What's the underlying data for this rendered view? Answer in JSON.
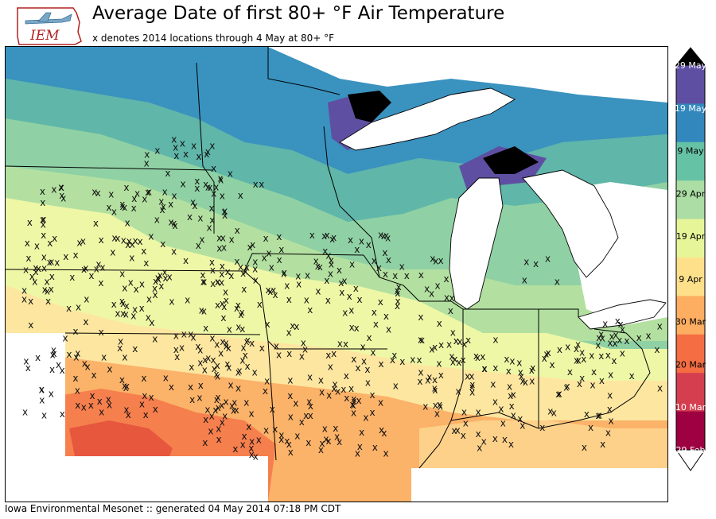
{
  "header": {
    "logo_text": "IEM",
    "title": "Average Date of first 80+ °F Air Temperature",
    "subtitle": "x denotes 2014 locations through 4 May at 80+ °F"
  },
  "footer": {
    "text": "Iowa Environmental Mesonet :: generated 04 May 2014 07:18 PM CDT"
  },
  "legend": {
    "labels": [
      "29 May",
      "19 May",
      "9 May",
      "29 Apr",
      "19 Apr",
      "9 Apr",
      "30 Mar",
      "20 Mar",
      "10 Mar",
      "29 Feb"
    ],
    "colors": [
      "#5e4fa2",
      "#3288bd",
      "#66c2a5",
      "#abdda4",
      "#e6f598",
      "#fee08b",
      "#fdae61",
      "#f46d43",
      "#d53e4f",
      "#9e0142"
    ],
    "over_color": "#000000",
    "under_color": "#9e0142"
  },
  "map": {
    "station_marker": "x",
    "lake_color": "#ffffff",
    "border_color": "#000000"
  }
}
